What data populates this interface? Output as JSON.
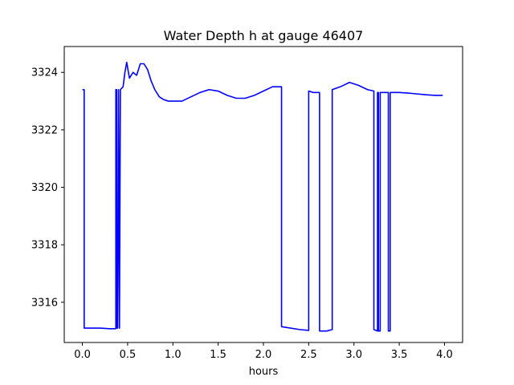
{
  "chart_data": {
    "type": "line",
    "title": "Water Depth h at gauge 46407",
    "xlabel": "hours",
    "ylabel": "",
    "xlim": [
      -0.2,
      4.2
    ],
    "ylim": [
      3314.6,
      3324.9
    ],
    "x_ticks": [
      0.0,
      0.5,
      1.0,
      1.5,
      2.0,
      2.5,
      3.0,
      3.5,
      4.0
    ],
    "x_tick_labels": [
      "0.0",
      "0.5",
      "1.0",
      "1.5",
      "2.0",
      "2.5",
      "3.0",
      "3.5",
      "4.0"
    ],
    "y_ticks": [
      3316,
      3318,
      3320,
      3322,
      3324
    ],
    "y_tick_labels": [
      "3316",
      "3318",
      "3320",
      "3322",
      "3324"
    ],
    "grid": false,
    "series": [
      {
        "color": "#0000ff",
        "x": [
          0.0,
          0.02,
          0.02,
          0.1,
          0.2,
          0.3,
          0.36,
          0.37,
          0.37,
          0.38,
          0.38,
          0.39,
          0.4,
          0.4,
          0.41,
          0.41,
          0.42,
          0.45,
          0.47,
          0.49,
          0.52,
          0.56,
          0.6,
          0.64,
          0.68,
          0.72,
          0.76,
          0.8,
          0.85,
          0.9,
          0.95,
          1.0,
          1.1,
          1.2,
          1.3,
          1.4,
          1.5,
          1.6,
          1.7,
          1.8,
          1.9,
          2.0,
          2.1,
          2.2,
          2.2,
          2.3,
          2.4,
          2.5,
          2.5,
          2.55,
          2.6,
          2.62,
          2.62,
          2.7,
          2.76,
          2.76,
          2.85,
          2.95,
          3.05,
          3.15,
          3.22,
          3.22,
          3.26,
          3.26,
          3.27,
          3.27,
          3.29,
          3.29,
          3.3,
          3.3,
          3.38,
          3.38,
          3.4,
          3.4,
          3.5,
          3.6,
          3.7,
          3.8,
          3.9,
          3.98
        ],
        "y": [
          3323.4,
          3323.4,
          3315.1,
          3315.1,
          3315.1,
          3315.08,
          3315.08,
          3315.08,
          3323.4,
          3323.4,
          3315.1,
          3315.1,
          3323.4,
          3323.4,
          3315.1,
          3315.1,
          3323.4,
          3323.5,
          3324.0,
          3324.35,
          3323.8,
          3324.0,
          3323.9,
          3324.3,
          3324.3,
          3324.1,
          3323.7,
          3323.4,
          3323.15,
          3323.05,
          3323.0,
          3323.0,
          3323.0,
          3323.15,
          3323.3,
          3323.4,
          3323.35,
          3323.2,
          3323.1,
          3323.1,
          3323.2,
          3323.35,
          3323.5,
          3323.5,
          3315.15,
          3315.1,
          3315.05,
          3315.02,
          3323.35,
          3323.3,
          3323.3,
          3323.3,
          3315.0,
          3315.0,
          3315.05,
          3323.4,
          3323.5,
          3323.65,
          3323.55,
          3323.4,
          3323.35,
          3315.05,
          3315.0,
          3323.3,
          3323.3,
          3315.0,
          3315.0,
          3323.3,
          3323.3,
          3323.3,
          3323.3,
          3315.0,
          3315.0,
          3323.3,
          3323.3,
          3323.28,
          3323.25,
          3323.22,
          3323.2,
          3323.2
        ]
      }
    ]
  }
}
